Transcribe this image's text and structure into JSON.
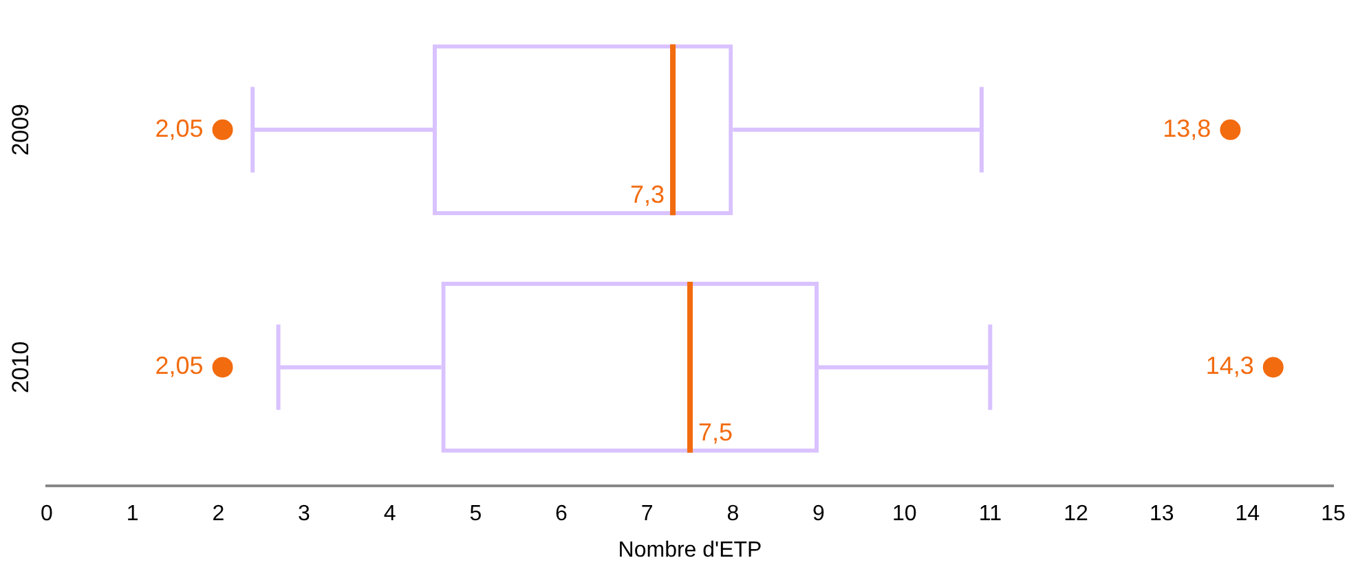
{
  "chart_data": {
    "type": "box",
    "orientation": "horizontal",
    "xlabel": "Nombre d'ETP",
    "categories": [
      "2009",
      "2010"
    ],
    "series": [
      {
        "color": "#d9c2ff",
        "boxes": [
          {
            "low": 2.4,
            "q1": 4.5,
            "median": 7.3,
            "q3": 8,
            "high": 10.9,
            "outliers": [
              2.05,
              13.8
            ]
          },
          {
            "low": 2.7,
            "q1": 4.6,
            "median": 7.5,
            "q3": 9,
            "high": 11,
            "outliers": [
              2.05,
              14.3
            ]
          }
        ]
      }
    ],
    "xlim": [
      0,
      15
    ],
    "xticks": [
      0,
      1,
      2,
      3,
      4,
      5,
      6,
      7,
      8,
      9,
      10,
      11,
      12,
      13,
      14,
      15
    ],
    "grid": false,
    "legend": false,
    "annotations": [
      "2,05",
      "13,8",
      {
        "text": "7,3",
        "x": 7.3,
        "y": "2009"
      },
      "2,05",
      "14,3",
      {
        "text": "7,5",
        "x": 7.5,
        "y": "2010"
      }
    ]
  }
}
